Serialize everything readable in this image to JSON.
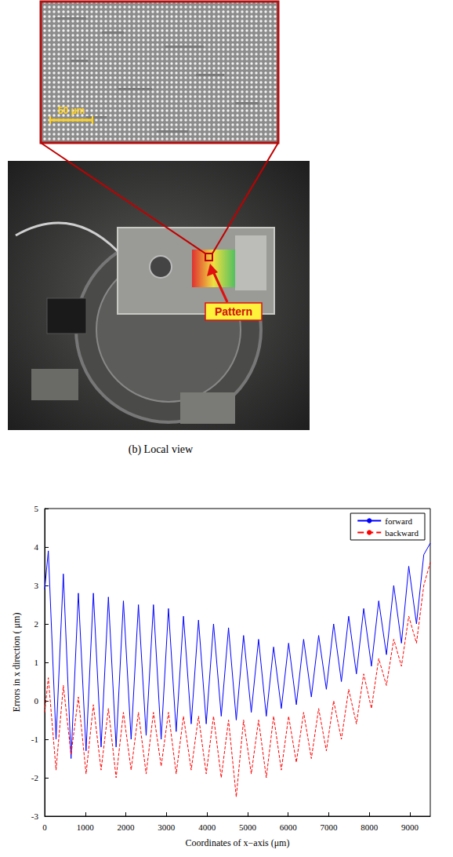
{
  "figure": {
    "inset_scale_bar": "50 µm",
    "arrow_label": "Pattern",
    "caption": "(b) Local view"
  },
  "chart_data": {
    "type": "line",
    "x_label": "Coordinates of x−axis (μm)",
    "y_label": "Errors in x direction ( μm)",
    "x": [
      0,
      90,
      280,
      460,
      650,
      830,
      1020,
      1200,
      1390,
      1570,
      1760,
      1940,
      2130,
      2310,
      2500,
      2680,
      2870,
      3050,
      3240,
      3420,
      3610,
      3790,
      3980,
      4160,
      4350,
      4530,
      4720,
      4900,
      5090,
      5270,
      5460,
      5640,
      5830,
      6010,
      6200,
      6380,
      6570,
      6750,
      6940,
      7120,
      7310,
      7490,
      7680,
      7860,
      8050,
      8230,
      8420,
      8600,
      8790,
      8970,
      9160,
      9340,
      9500
    ],
    "series": [
      {
        "name": "forward",
        "color": "#0000ff",
        "line_style": "solid",
        "values": [
          2.9,
          3.9,
          -1.0,
          3.3,
          -1.5,
          2.8,
          -1.3,
          2.8,
          -1.2,
          2.7,
          -1.2,
          2.6,
          -1.0,
          2.5,
          -0.9,
          2.5,
          -1.0,
          2.4,
          -0.8,
          2.2,
          -0.6,
          2.1,
          -0.6,
          2.0,
          -0.4,
          1.9,
          -0.5,
          1.7,
          -0.3,
          1.6,
          -0.4,
          1.4,
          -0.2,
          1.5,
          -0.1,
          1.6,
          0.1,
          1.7,
          0.3,
          2.0,
          0.5,
          2.2,
          0.7,
          2.4,
          0.9,
          2.6,
          1.2,
          3.0,
          1.5,
          3.5,
          2.0,
          3.8,
          4.1
        ]
      },
      {
        "name": "backward",
        "color": "#ff0000",
        "line_style": "dashed",
        "values": [
          -0.3,
          0.6,
          -1.8,
          0.4,
          -1.4,
          0.1,
          -1.9,
          -0.1,
          -1.8,
          -0.2,
          -2.0,
          -0.3,
          -1.8,
          -0.3,
          -1.9,
          -0.3,
          -1.7,
          -0.3,
          -1.9,
          -0.4,
          -1.8,
          -0.4,
          -1.9,
          -0.4,
          -2.0,
          -0.5,
          -2.5,
          -0.5,
          -1.9,
          -0.5,
          -2.0,
          -0.4,
          -1.8,
          -0.4,
          -1.6,
          -0.3,
          -1.5,
          -0.2,
          -1.3,
          0.0,
          -1.0,
          0.3,
          -0.6,
          0.7,
          -0.2,
          1.1,
          0.4,
          1.6,
          0.9,
          2.2,
          1.5,
          3.0,
          3.6
        ]
      }
    ],
    "xlim": [
      0,
      9500
    ],
    "xticks": [
      0,
      1000,
      2000,
      3000,
      4000,
      5000,
      6000,
      7000,
      8000,
      9000
    ],
    "ylim": [
      -3,
      5
    ],
    "yticks": [
      -3,
      -2,
      -1,
      0,
      1,
      2,
      3,
      4,
      5
    ],
    "grid": false,
    "legend": "upper right"
  }
}
